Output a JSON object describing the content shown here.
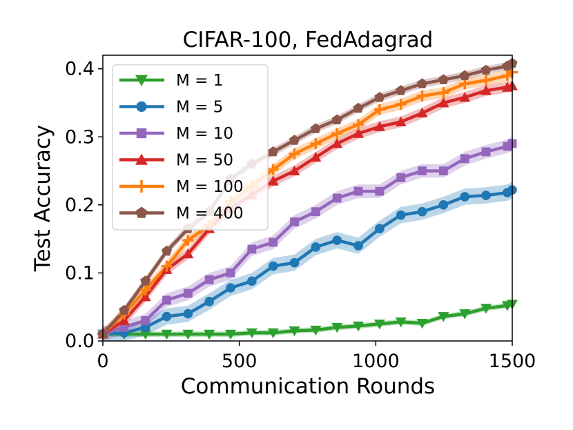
{
  "chart_data": {
    "type": "line",
    "title": "CIFAR-100, FedAdagrad",
    "xlabel": "Communication Rounds",
    "ylabel": "Test Accuracy",
    "xlim": [
      0,
      1500
    ],
    "ylim": [
      0,
      0.42
    ],
    "xticks": [
      0,
      500,
      1000,
      1500
    ],
    "xtick_labels": [
      "0",
      "500",
      "1000",
      "1500"
    ],
    "yticks": [
      0,
      0.1,
      0.2,
      0.3,
      0.4
    ],
    "ytick_labels": [
      "0.0",
      "0.1",
      "0.2",
      "0.3",
      "0.4"
    ],
    "grid": false,
    "legend_position": "top-left",
    "x": [
      0,
      78,
      156,
      234,
      312,
      390,
      468,
      546,
      624,
      702,
      780,
      858,
      936,
      1014,
      1092,
      1170,
      1248,
      1326,
      1404,
      1482,
      1500
    ],
    "series": [
      {
        "name": "M = 1",
        "color": "#2ca02c",
        "marker": "triangle-down",
        "values": [
          0.01,
          0.01,
          0.01,
          0.01,
          0.01,
          0.01,
          0.01,
          0.012,
          0.012,
          0.015,
          0.016,
          0.02,
          0.022,
          0.025,
          0.028,
          0.026,
          0.036,
          0.04,
          0.048,
          0.052,
          0.054
        ],
        "band": 0.004
      },
      {
        "name": "M = 5",
        "color": "#1f77b4",
        "marker": "circle",
        "values": [
          0.01,
          0.012,
          0.02,
          0.036,
          0.04,
          0.058,
          0.078,
          0.088,
          0.11,
          0.115,
          0.138,
          0.148,
          0.14,
          0.165,
          0.185,
          0.19,
          0.2,
          0.212,
          0.214,
          0.218,
          0.222
        ],
        "band": 0.012
      },
      {
        "name": "M = 10",
        "color": "#9467bd",
        "marker": "square",
        "values": [
          0.01,
          0.02,
          0.03,
          0.06,
          0.07,
          0.09,
          0.1,
          0.135,
          0.145,
          0.175,
          0.19,
          0.21,
          0.22,
          0.22,
          0.24,
          0.25,
          0.25,
          0.268,
          0.278,
          0.286,
          0.29
        ],
        "band": 0.01
      },
      {
        "name": "M = 50",
        "color": "#d62728",
        "marker": "triangle-up",
        "values": [
          0.01,
          0.03,
          0.065,
          0.105,
          0.128,
          0.165,
          0.195,
          0.215,
          0.235,
          0.25,
          0.27,
          0.29,
          0.305,
          0.315,
          0.322,
          0.335,
          0.35,
          0.358,
          0.368,
          0.373,
          0.375
        ],
        "band": 0.008
      },
      {
        "name": "M = 100",
        "color": "#ff7f0e",
        "marker": "plus",
        "values": [
          0.01,
          0.04,
          0.075,
          0.11,
          0.148,
          0.17,
          0.205,
          0.228,
          0.252,
          0.275,
          0.29,
          0.305,
          0.318,
          0.34,
          0.348,
          0.36,
          0.365,
          0.378,
          0.383,
          0.39,
          0.395
        ],
        "band": 0.008
      },
      {
        "name": "M = 400",
        "color": "#8c564b",
        "marker": "pentagon",
        "values": [
          0.01,
          0.045,
          0.088,
          0.132,
          0.165,
          0.19,
          0.238,
          0.26,
          0.278,
          0.295,
          0.312,
          0.325,
          0.342,
          0.358,
          0.368,
          0.378,
          0.384,
          0.39,
          0.398,
          0.404,
          0.408
        ],
        "band": 0.006
      }
    ]
  }
}
